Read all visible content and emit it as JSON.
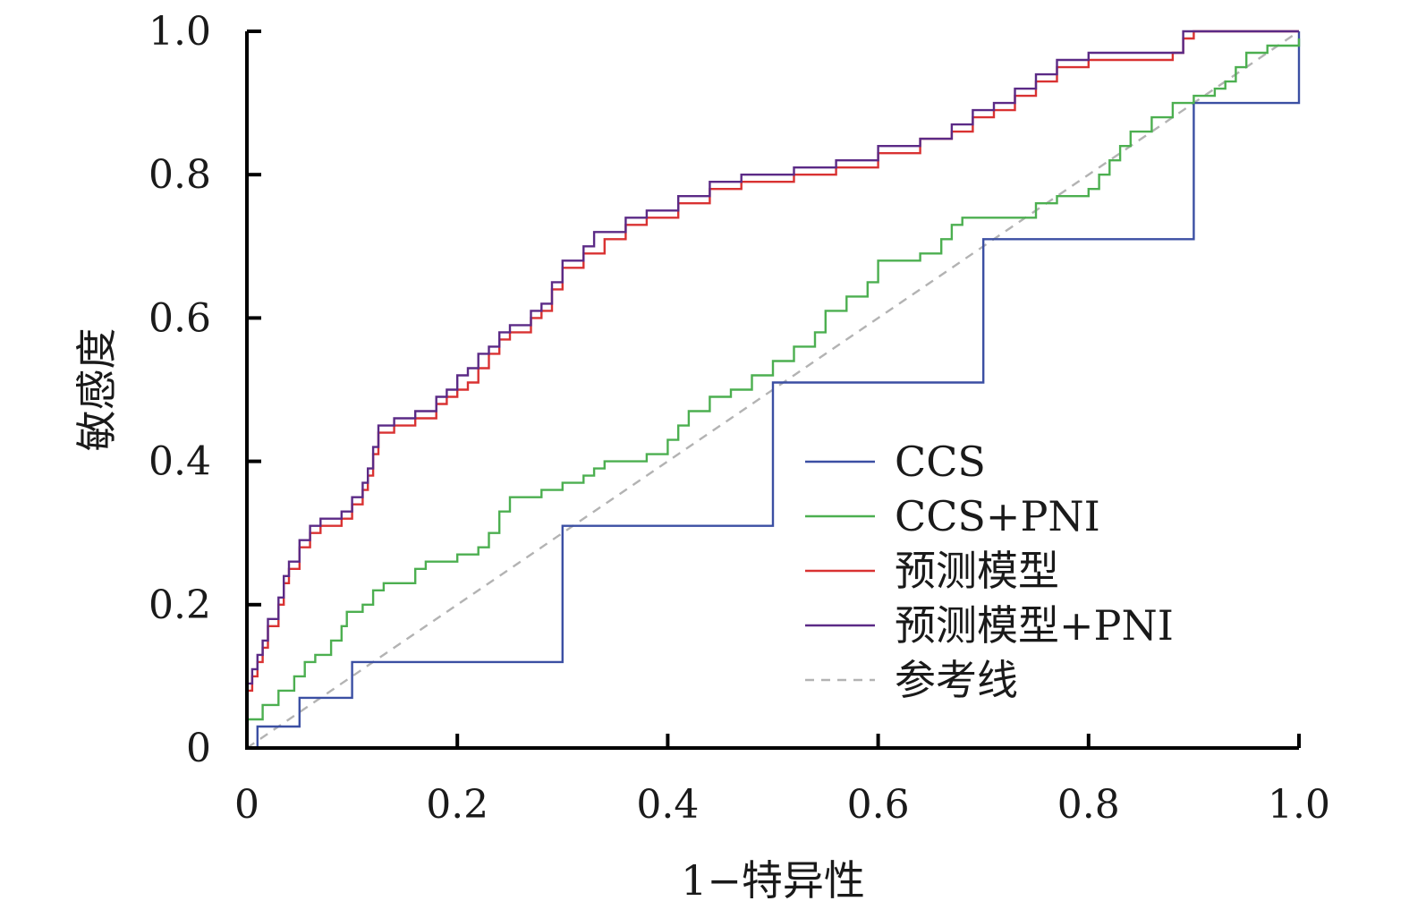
{
  "chart_data": {
    "type": "line",
    "xlabel": "1−特异性",
    "ylabel": "敏感度",
    "xlim": [
      0,
      1
    ],
    "ylim": [
      0,
      1
    ],
    "x_ticks": [
      "0",
      "0.2",
      "0.4",
      "0.6",
      "0.8",
      "1.0"
    ],
    "y_ticks": [
      "0",
      "0.2",
      "0.4",
      "0.6",
      "0.8",
      "1.0"
    ],
    "grid": false,
    "legend_position": "bottom-right",
    "series": [
      {
        "name": "CCS",
        "color": "#3b4fa3",
        "dash": false,
        "points": [
          [
            0,
            0
          ],
          [
            0.01,
            0.03
          ],
          [
            0.05,
            0.07
          ],
          [
            0.1,
            0.12
          ],
          [
            0.3,
            0.31
          ],
          [
            0.5,
            0.51
          ],
          [
            0.7,
            0.71
          ],
          [
            0.9,
            0.9
          ],
          [
            1,
            1
          ]
        ]
      },
      {
        "name": "CCS+PNI",
        "color": "#4caf50",
        "dash": false,
        "points": [
          [
            0,
            0
          ],
          [
            0,
            0.04
          ],
          [
            0.015,
            0.06
          ],
          [
            0.03,
            0.08
          ],
          [
            0.045,
            0.1
          ],
          [
            0.055,
            0.12
          ],
          [
            0.065,
            0.13
          ],
          [
            0.08,
            0.15
          ],
          [
            0.09,
            0.17
          ],
          [
            0.095,
            0.19
          ],
          [
            0.11,
            0.2
          ],
          [
            0.12,
            0.22
          ],
          [
            0.13,
            0.23
          ],
          [
            0.16,
            0.25
          ],
          [
            0.17,
            0.26
          ],
          [
            0.2,
            0.27
          ],
          [
            0.22,
            0.28
          ],
          [
            0.23,
            0.3
          ],
          [
            0.24,
            0.33
          ],
          [
            0.25,
            0.35
          ],
          [
            0.28,
            0.36
          ],
          [
            0.3,
            0.37
          ],
          [
            0.32,
            0.38
          ],
          [
            0.33,
            0.39
          ],
          [
            0.34,
            0.4
          ],
          [
            0.38,
            0.41
          ],
          [
            0.4,
            0.43
          ],
          [
            0.41,
            0.45
          ],
          [
            0.42,
            0.47
          ],
          [
            0.44,
            0.49
          ],
          [
            0.46,
            0.5
          ],
          [
            0.48,
            0.52
          ],
          [
            0.5,
            0.54
          ],
          [
            0.52,
            0.56
          ],
          [
            0.54,
            0.58
          ],
          [
            0.55,
            0.61
          ],
          [
            0.57,
            0.63
          ],
          [
            0.59,
            0.65
          ],
          [
            0.6,
            0.67
          ],
          [
            0.6,
            0.68
          ],
          [
            0.64,
            0.69
          ],
          [
            0.66,
            0.71
          ],
          [
            0.67,
            0.73
          ],
          [
            0.68,
            0.74
          ],
          [
            0.72,
            0.74
          ],
          [
            0.75,
            0.76
          ],
          [
            0.77,
            0.77
          ],
          [
            0.8,
            0.78
          ],
          [
            0.81,
            0.8
          ],
          [
            0.82,
            0.82
          ],
          [
            0.83,
            0.84
          ],
          [
            0.84,
            0.86
          ],
          [
            0.86,
            0.88
          ],
          [
            0.88,
            0.9
          ],
          [
            0.9,
            0.91
          ],
          [
            0.92,
            0.92
          ],
          [
            0.93,
            0.93
          ],
          [
            0.94,
            0.95
          ],
          [
            0.95,
            0.97
          ],
          [
            0.97,
            0.98
          ],
          [
            1,
            0.99
          ]
        ]
      },
      {
        "name": "预测模型",
        "color": "#d93232",
        "dash": false,
        "points": [
          [
            0,
            0
          ],
          [
            0,
            0.08
          ],
          [
            0.005,
            0.1
          ],
          [
            0.01,
            0.12
          ],
          [
            0.015,
            0.14
          ],
          [
            0.02,
            0.17
          ],
          [
            0.03,
            0.2
          ],
          [
            0.035,
            0.23
          ],
          [
            0.04,
            0.25
          ],
          [
            0.05,
            0.28
          ],
          [
            0.06,
            0.3
          ],
          [
            0.07,
            0.31
          ],
          [
            0.09,
            0.32
          ],
          [
            0.1,
            0.34
          ],
          [
            0.11,
            0.36
          ],
          [
            0.115,
            0.38
          ],
          [
            0.12,
            0.41
          ],
          [
            0.125,
            0.44
          ],
          [
            0.14,
            0.45
          ],
          [
            0.16,
            0.46
          ],
          [
            0.18,
            0.48
          ],
          [
            0.19,
            0.49
          ],
          [
            0.2,
            0.5
          ],
          [
            0.21,
            0.51
          ],
          [
            0.22,
            0.53
          ],
          [
            0.23,
            0.55
          ],
          [
            0.24,
            0.57
          ],
          [
            0.25,
            0.58
          ],
          [
            0.27,
            0.6
          ],
          [
            0.28,
            0.61
          ],
          [
            0.29,
            0.64
          ],
          [
            0.3,
            0.67
          ],
          [
            0.32,
            0.69
          ],
          [
            0.34,
            0.71
          ],
          [
            0.36,
            0.73
          ],
          [
            0.38,
            0.74
          ],
          [
            0.41,
            0.76
          ],
          [
            0.44,
            0.78
          ],
          [
            0.47,
            0.79
          ],
          [
            0.52,
            0.8
          ],
          [
            0.56,
            0.81
          ],
          [
            0.6,
            0.83
          ],
          [
            0.64,
            0.85
          ],
          [
            0.67,
            0.86
          ],
          [
            0.69,
            0.88
          ],
          [
            0.71,
            0.89
          ],
          [
            0.73,
            0.91
          ],
          [
            0.75,
            0.93
          ],
          [
            0.77,
            0.95
          ],
          [
            0.8,
            0.96
          ],
          [
            0.88,
            0.97
          ],
          [
            0.89,
            0.99
          ],
          [
            0.9,
            1.0
          ],
          [
            1,
            1
          ]
        ]
      },
      {
        "name": "预测模型+PNI",
        "color": "#5b2a86",
        "dash": false,
        "points": [
          [
            0,
            0
          ],
          [
            0,
            0.09
          ],
          [
            0.005,
            0.11
          ],
          [
            0.01,
            0.13
          ],
          [
            0.015,
            0.15
          ],
          [
            0.02,
            0.18
          ],
          [
            0.03,
            0.21
          ],
          [
            0.035,
            0.24
          ],
          [
            0.04,
            0.26
          ],
          [
            0.05,
            0.29
          ],
          [
            0.06,
            0.31
          ],
          [
            0.07,
            0.32
          ],
          [
            0.09,
            0.33
          ],
          [
            0.1,
            0.35
          ],
          [
            0.11,
            0.37
          ],
          [
            0.115,
            0.39
          ],
          [
            0.12,
            0.42
          ],
          [
            0.125,
            0.45
          ],
          [
            0.14,
            0.46
          ],
          [
            0.16,
            0.47
          ],
          [
            0.18,
            0.49
          ],
          [
            0.19,
            0.5
          ],
          [
            0.2,
            0.52
          ],
          [
            0.21,
            0.53
          ],
          [
            0.22,
            0.55
          ],
          [
            0.23,
            0.56
          ],
          [
            0.24,
            0.58
          ],
          [
            0.25,
            0.59
          ],
          [
            0.27,
            0.61
          ],
          [
            0.28,
            0.62
          ],
          [
            0.29,
            0.65
          ],
          [
            0.3,
            0.68
          ],
          [
            0.32,
            0.7
          ],
          [
            0.33,
            0.72
          ],
          [
            0.36,
            0.74
          ],
          [
            0.38,
            0.75
          ],
          [
            0.41,
            0.77
          ],
          [
            0.44,
            0.79
          ],
          [
            0.47,
            0.8
          ],
          [
            0.52,
            0.81
          ],
          [
            0.56,
            0.82
          ],
          [
            0.6,
            0.84
          ],
          [
            0.64,
            0.85
          ],
          [
            0.67,
            0.87
          ],
          [
            0.69,
            0.89
          ],
          [
            0.71,
            0.9
          ],
          [
            0.73,
            0.92
          ],
          [
            0.75,
            0.94
          ],
          [
            0.77,
            0.96
          ],
          [
            0.8,
            0.97
          ],
          [
            0.88,
            0.97
          ],
          [
            0.89,
            1.0
          ],
          [
            1,
            1
          ]
        ]
      },
      {
        "name": "参考线",
        "color": "#b3b3b3",
        "dash": true,
        "points": [
          [
            0,
            0
          ],
          [
            1,
            1
          ]
        ]
      }
    ]
  }
}
